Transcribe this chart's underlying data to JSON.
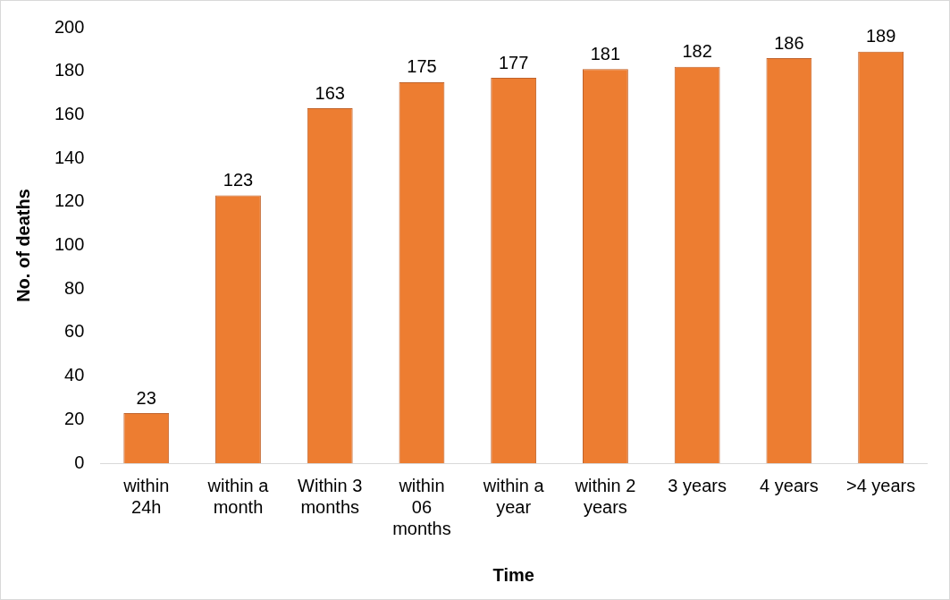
{
  "chart_data": {
    "type": "bar",
    "categories": [
      "within 24h",
      "within a month",
      "Within 3 months",
      "within 06 months",
      "within a year",
      "within 2 years",
      "3 years",
      "4 years",
      ">4 years"
    ],
    "values": [
      23,
      123,
      163,
      175,
      177,
      181,
      182,
      186,
      189
    ],
    "color": "#ed7d31",
    "ylim": [
      0,
      200
    ],
    "yticks": [
      0,
      20,
      40,
      60,
      80,
      100,
      120,
      140,
      160,
      180,
      200
    ],
    "grid": false,
    "data_labels": true,
    "xlabel": "Time",
    "ylabel": "No. of deaths"
  }
}
